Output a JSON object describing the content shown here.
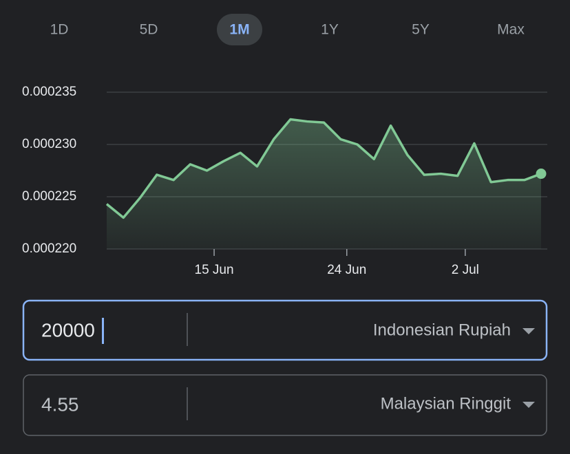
{
  "tabs": {
    "items": [
      "1D",
      "5D",
      "1M",
      "1Y",
      "5Y",
      "Max"
    ],
    "selected": 2
  },
  "chart_data": {
    "type": "area",
    "categories": [
      null,
      null,
      null,
      null,
      null,
      null,
      null,
      null,
      null,
      null,
      null,
      null,
      null,
      null,
      null,
      null,
      null,
      null,
      null,
      null,
      null,
      null,
      null,
      null,
      null,
      null,
      null
    ],
    "values": [
      0.0002243,
      0.000223,
      0.0002249,
      0.0002271,
      0.0002266,
      0.0002281,
      0.0002275,
      0.0002284,
      0.0002292,
      0.0002279,
      0.0002305,
      0.0002324,
      0.0002322,
      0.0002321,
      0.0002305,
      0.00023,
      0.0002286,
      0.0002318,
      0.000229,
      0.0002271,
      0.0002272,
      0.000227,
      0.0002301,
      0.0002264,
      0.0002266,
      0.0002266,
      0.0002272
    ],
    "color": "#81c995",
    "ylim": [
      0.00022,
      0.000235
    ],
    "yticks": [
      {
        "value": 0.00022,
        "label": "0.000220"
      },
      {
        "value": 0.000225,
        "label": "0.000225"
      },
      {
        "value": 0.00023,
        "label": "0.000230"
      },
      {
        "value": 0.000235,
        "label": "0.000235"
      }
    ],
    "xticks": [
      {
        "value": 6.43,
        "label": "15 Jun"
      },
      {
        "value": 14.37,
        "label": "24 Jun"
      },
      {
        "value": 21.46,
        "label": "2 Jul"
      }
    ],
    "grid": true
  },
  "converter": {
    "from": {
      "amount": "20000",
      "currency": "Indonesian Rupiah"
    },
    "to": {
      "amount": "4.55",
      "currency": "Malaysian Ringgit"
    }
  }
}
